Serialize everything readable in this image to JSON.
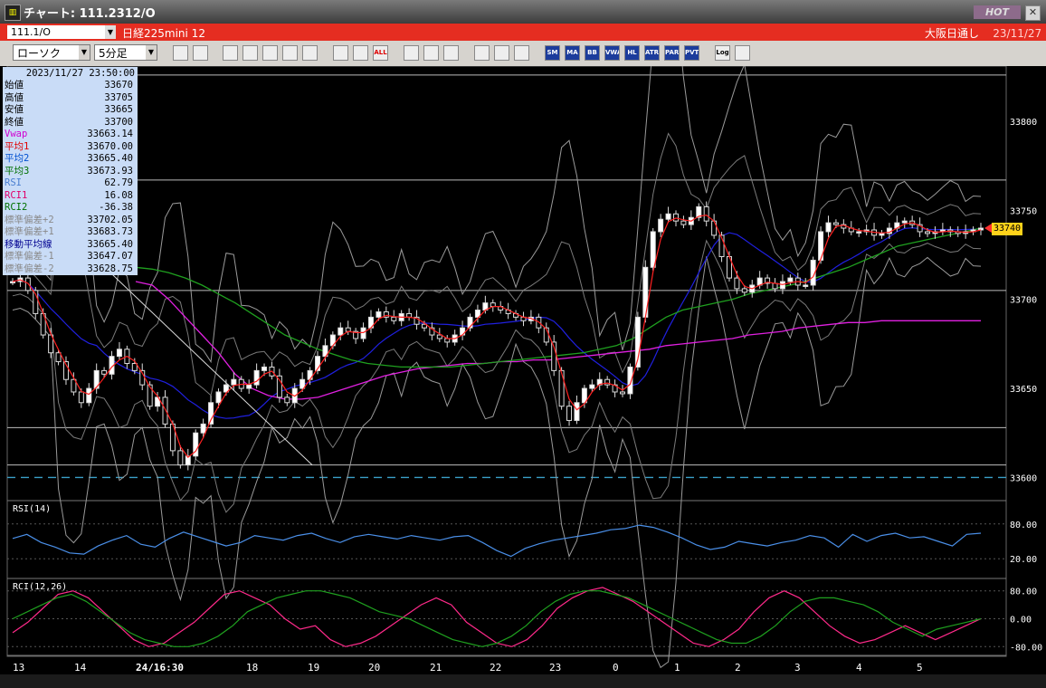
{
  "window": {
    "title": "チャート: 111.2312/O",
    "hot_label": "HOT",
    "close_label": "✕"
  },
  "symbol_bar": {
    "code": "111.1/O",
    "name": "日経225mini 12",
    "session": "大阪日通し",
    "date": "23/11/27"
  },
  "toolbar": {
    "chart_style": "ローソク",
    "interval": "5分足",
    "buttons": [
      "search",
      "crosshair",
      "draw",
      "zoom",
      "period",
      "multi",
      "blank",
      "lines",
      "box",
      "all",
      "trend",
      "cursor",
      "arrow",
      "settings",
      "tools",
      "color",
      "SM",
      "MA",
      "BB",
      "VWAP",
      "HL",
      "ATR",
      "PAR",
      "PVT",
      "Log",
      "window"
    ]
  },
  "info_panel": {
    "datetime": "2023/11/27 23:50:00",
    "rows": [
      {
        "label": "始値",
        "value": "33670",
        "color": "#000000"
      },
      {
        "label": "高値",
        "value": "33705",
        "color": "#000000"
      },
      {
        "label": "安値",
        "value": "33665",
        "color": "#000000"
      },
      {
        "label": "終値",
        "value": "33700",
        "color": "#000000"
      },
      {
        "label": "Vwap",
        "value": "33663.14",
        "color": "#d000d0"
      },
      {
        "label": "平均1",
        "value": "33670.00",
        "color": "#e00000"
      },
      {
        "label": "平均2",
        "value": "33665.40",
        "color": "#0050d0"
      },
      {
        "label": "平均3",
        "value": "33673.93",
        "color": "#007000"
      },
      {
        "label": "RSI",
        "value": "62.79",
        "color": "#4a7fd0"
      },
      {
        "label": "RCI1",
        "value": "16.08",
        "color": "#e0006a"
      },
      {
        "label": "RCI2",
        "value": "-36.38",
        "color": "#007000"
      },
      {
        "label": "標準偏差+2",
        "value": "33702.05",
        "color": "#8a8a8a"
      },
      {
        "label": "標準偏差+1",
        "value": "33683.73",
        "color": "#8a8a8a"
      },
      {
        "label": "移動平均線",
        "value": "33665.40",
        "color": "#000090"
      },
      {
        "label": "標準偏差-1",
        "value": "33647.07",
        "color": "#8a8a8a"
      },
      {
        "label": "標準偏差-2",
        "value": "33628.75",
        "color": "#8a8a8a"
      }
    ]
  },
  "chart_data": [
    {
      "type": "candlestick",
      "interval": "5分足",
      "ylim": [
        33588,
        33830
      ],
      "y_ticks": [
        33600,
        33650,
        33700,
        33750,
        33800
      ],
      "x_ticks": [
        "13",
        "14",
        "24/16:30",
        "18",
        "19",
        "20",
        "21",
        "22",
        "23",
        "0",
        "1",
        "2",
        "3",
        "4",
        "5"
      ],
      "current_price": "33740",
      "last_candle": {
        "open": 33670,
        "high": 33705,
        "low": 33665,
        "close": 33700
      },
      "horizontal_lines": [
        33826,
        33767,
        33705,
        33628,
        33607
      ],
      "dashed_line": 33600,
      "close_path": [
        33710,
        33712,
        33705,
        33692,
        33680,
        33670,
        33665,
        33655,
        33648,
        33642,
        33650,
        33660,
        33658,
        33668,
        33672,
        33664,
        33660,
        33652,
        33640,
        33645,
        33630,
        33615,
        33607,
        33612,
        33625,
        33630,
        33642,
        33648,
        33652,
        33655,
        33650,
        33652,
        33660,
        33662,
        33657,
        33645,
        33642,
        33650,
        33655,
        33660,
        33668,
        33674,
        33680,
        33684,
        33682,
        33678,
        33684,
        33690,
        33693,
        33690,
        33688,
        33692,
        33690,
        33686,
        33684,
        33680,
        33678,
        33676,
        33680,
        33684,
        33690,
        33694,
        33698,
        33696,
        33694,
        33692,
        33690,
        33688,
        33690,
        33684,
        33676,
        33660,
        33640,
        33632,
        33642,
        33650,
        33652,
        33655,
        33652,
        33648,
        33647,
        33662,
        33690,
        33718,
        33738,
        33745,
        33748,
        33744,
        33742,
        33746,
        33752,
        33744,
        33736,
        33724,
        33712,
        33706,
        33704,
        33708,
        33712,
        33709,
        33706,
        33710,
        33712,
        33708,
        33708,
        33722,
        33738,
        33743,
        33742,
        33740,
        33738,
        33738,
        33739,
        33736,
        33737,
        33740,
        33743,
        33744,
        33742,
        33738,
        33737,
        33738,
        33739,
        33738,
        33737,
        33738,
        33739,
        33740
      ],
      "series": [
        {
          "name": "Vwap",
          "color": "#e020e0",
          "values": [
            33710,
            33708,
            33700,
            33690,
            33680,
            33670,
            33658,
            33650,
            33646,
            33644,
            33644,
            33645,
            33648,
            33651,
            33654,
            33657,
            33659,
            33661,
            33662,
            33663,
            33664,
            33664,
            33665,
            33665,
            33666,
            33666,
            33667,
            33668,
            33669,
            33670,
            33671,
            33672,
            33674,
            33675,
            33676,
            33677,
            33678,
            33680,
            33681,
            33682,
            33684,
            33685,
            33686,
            33687,
            33687,
            33688,
            33688,
            33688,
            33688,
            33688,
            33688,
            33688
          ]
        },
        {
          "name": "平均3",
          "color": "#1fa01f",
          "values": [
            33718,
            33717,
            33715,
            33712,
            33708,
            33703,
            33698,
            33692,
            33686,
            33680,
            33676,
            33672,
            33669,
            33666,
            33664,
            33663,
            33662,
            33662,
            33662,
            33662,
            33663,
            33664,
            33665,
            33666,
            33667,
            33668,
            33669,
            33670,
            33672,
            33674,
            33678,
            33684,
            33690,
            33694,
            33696,
            33698,
            33700,
            33703,
            33705,
            33707,
            33709,
            33712,
            33715,
            33718,
            33722,
            33726,
            33730,
            33732,
            33734,
            33736,
            33738,
            33740
          ]
        }
      ]
    },
    {
      "type": "line",
      "title": "RSI(14)",
      "ylim": [
        0,
        100
      ],
      "y_ticks": [
        "80.00",
        "20.00"
      ],
      "series": [
        {
          "name": "RSI",
          "color": "#4a8fe8",
          "values": [
            55,
            62,
            48,
            40,
            30,
            28,
            42,
            52,
            60,
            45,
            40,
            55,
            66,
            58,
            50,
            42,
            48,
            60,
            56,
            52,
            60,
            64,
            55,
            48,
            58,
            62,
            58,
            54,
            60,
            56,
            52,
            58,
            60,
            48,
            34,
            24,
            38,
            46,
            52,
            56,
            60,
            64,
            70,
            72,
            78,
            74,
            66,
            56,
            44,
            36,
            40,
            50,
            46,
            42,
            48,
            52,
            60,
            56,
            40,
            62,
            50,
            60,
            64,
            56,
            58,
            50,
            42,
            62,
            64
          ]
        }
      ]
    },
    {
      "type": "line",
      "title": "RCI(12,26)",
      "ylim": [
        -100,
        100
      ],
      "y_ticks": [
        "80.00",
        "0.00",
        "-80.00"
      ],
      "series": [
        {
          "name": "RCI1",
          "color": "#ff2a8a",
          "values": [
            -40,
            -10,
            30,
            70,
            80,
            60,
            20,
            -20,
            -60,
            -80,
            -70,
            -40,
            -10,
            30,
            70,
            80,
            60,
            40,
            0,
            -30,
            -20,
            -60,
            -80,
            -70,
            -50,
            -20,
            10,
            40,
            60,
            40,
            -10,
            -40,
            -70,
            -80,
            -60,
            -20,
            30,
            60,
            80,
            90,
            70,
            50,
            20,
            -10,
            -40,
            -70,
            -80,
            -60,
            -30,
            20,
            60,
            80,
            60,
            20,
            -20,
            -50,
            -70,
            -60,
            -40,
            -20,
            -40,
            -60,
            -40,
            -20,
            0
          ]
        },
        {
          "name": "RCI2",
          "color": "#1fa01f",
          "values": [
            0,
            20,
            40,
            60,
            70,
            50,
            20,
            -10,
            -40,
            -60,
            -70,
            -80,
            -80,
            -70,
            -50,
            -20,
            20,
            40,
            60,
            70,
            80,
            80,
            70,
            60,
            40,
            20,
            10,
            0,
            -20,
            -40,
            -60,
            -70,
            -80,
            -70,
            -50,
            -20,
            20,
            50,
            70,
            80,
            80,
            70,
            60,
            40,
            20,
            0,
            -20,
            -40,
            -60,
            -70,
            -70,
            -50,
            -20,
            20,
            50,
            60,
            60,
            50,
            40,
            20,
            -10,
            -30,
            -50,
            -30,
            -20,
            -10,
            0
          ]
        }
      ]
    }
  ]
}
